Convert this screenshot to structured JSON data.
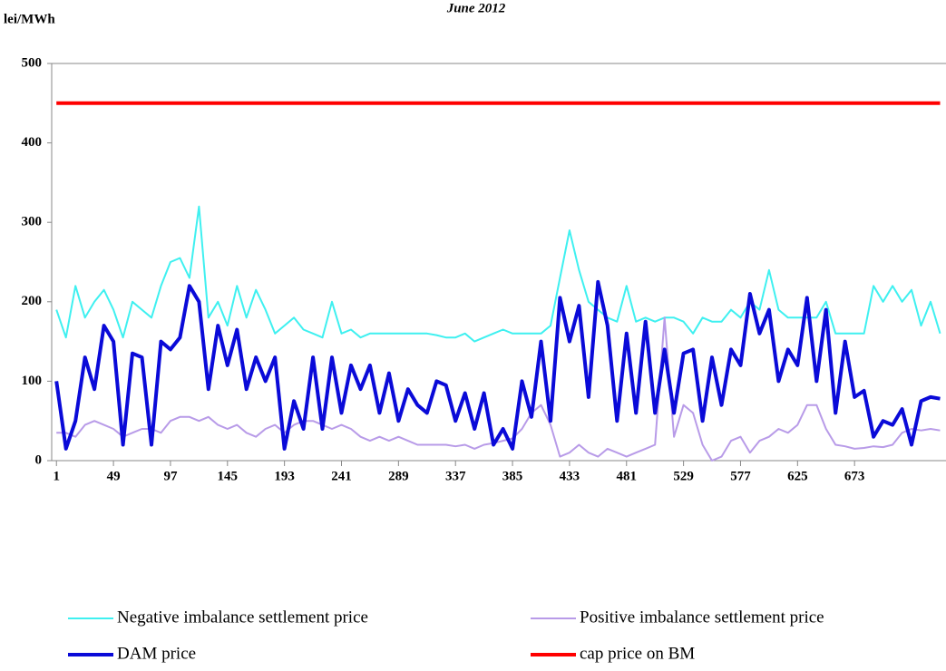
{
  "chart_data": {
    "type": "line",
    "title": "June 2012",
    "y_label": "lei/MWh",
    "xlim": [
      -3,
      750
    ],
    "xticks": [
      1,
      49,
      97,
      145,
      193,
      241,
      289,
      337,
      385,
      433,
      481,
      529,
      577,
      625,
      673
    ],
    "ylim": [
      0,
      500
    ],
    "yticks": [
      0,
      100,
      200,
      300,
      400,
      500
    ],
    "x": [
      1,
      9,
      17,
      25,
      33,
      41,
      49,
      57,
      65,
      73,
      81,
      89,
      97,
      105,
      113,
      121,
      129,
      137,
      145,
      153,
      161,
      169,
      177,
      185,
      193,
      201,
      209,
      217,
      225,
      233,
      241,
      249,
      257,
      265,
      273,
      281,
      289,
      297,
      305,
      313,
      321,
      329,
      337,
      345,
      353,
      361,
      369,
      377,
      385,
      393,
      401,
      409,
      417,
      425,
      433,
      441,
      449,
      457,
      465,
      473,
      481,
      489,
      497,
      505,
      513,
      521,
      529,
      537,
      545,
      553,
      561,
      569,
      577,
      585,
      593,
      601,
      609,
      617,
      625,
      633,
      641,
      649,
      657,
      665,
      673,
      681,
      689,
      697,
      705,
      713,
      721,
      729,
      737,
      745
    ],
    "series": [
      {
        "name": "Negative imbalance settlement price",
        "color": "#3ff0f0",
        "width": 2,
        "values": [
          190,
          155,
          220,
          180,
          200,
          215,
          190,
          155,
          200,
          190,
          180,
          220,
          250,
          255,
          230,
          320,
          180,
          200,
          170,
          220,
          180,
          215,
          190,
          160,
          170,
          180,
          165,
          160,
          155,
          200,
          160,
          165,
          155,
          160,
          160,
          160,
          160,
          160,
          160,
          160,
          158,
          155,
          155,
          160,
          150,
          155,
          160,
          165,
          160,
          160,
          160,
          160,
          170,
          230,
          290,
          240,
          200,
          190,
          180,
          175,
          220,
          175,
          180,
          175,
          180,
          180,
          175,
          160,
          180,
          175,
          175,
          190,
          180,
          200,
          190,
          240,
          190,
          180,
          180,
          180,
          180,
          200,
          160,
          160,
          160,
          160,
          220,
          200,
          220,
          200,
          215,
          170,
          200,
          160
        ]
      },
      {
        "name": "Positive imbalance settlement price",
        "color": "#b89be8",
        "width": 2,
        "values": [
          35,
          35,
          30,
          45,
          50,
          45,
          40,
          30,
          35,
          40,
          40,
          35,
          50,
          55,
          55,
          50,
          55,
          45,
          40,
          45,
          35,
          30,
          40,
          45,
          35,
          45,
          50,
          50,
          45,
          40,
          45,
          40,
          30,
          25,
          30,
          25,
          30,
          25,
          20,
          20,
          20,
          20,
          18,
          20,
          15,
          20,
          22,
          25,
          28,
          40,
          60,
          70,
          45,
          5,
          10,
          20,
          10,
          5,
          15,
          10,
          5,
          10,
          15,
          20,
          180,
          30,
          70,
          60,
          20,
          0,
          5,
          25,
          30,
          10,
          25,
          30,
          40,
          35,
          45,
          70,
          70,
          40,
          20,
          18,
          15,
          16,
          18,
          17,
          20,
          35,
          40,
          38,
          40,
          38
        ]
      },
      {
        "name": "DAM price",
        "color": "#0a0ad8",
        "width": 4,
        "values": [
          100,
          15,
          50,
          130,
          90,
          170,
          150,
          20,
          135,
          130,
          20,
          150,
          140,
          155,
          220,
          200,
          90,
          170,
          120,
          165,
          90,
          130,
          100,
          130,
          15,
          75,
          40,
          130,
          40,
          130,
          60,
          120,
          90,
          120,
          60,
          110,
          50,
          90,
          70,
          60,
          100,
          95,
          50,
          85,
          40,
          85,
          20,
          40,
          15,
          100,
          55,
          150,
          50,
          205,
          150,
          195,
          80,
          225,
          170,
          50,
          160,
          60,
          175,
          60,
          140,
          60,
          135,
          140,
          50,
          130,
          70,
          140,
          120,
          210,
          160,
          190,
          100,
          140,
          120,
          205,
          100,
          190,
          60,
          150,
          80,
          88,
          30,
          50,
          45,
          65,
          20,
          75,
          80,
          78
        ]
      },
      {
        "name": "cap price on BM",
        "color": "#ff0000",
        "width": 4,
        "values": [
          450,
          450,
          450,
          450,
          450,
          450,
          450,
          450,
          450,
          450,
          450,
          450,
          450,
          450,
          450,
          450,
          450,
          450,
          450,
          450,
          450,
          450,
          450,
          450,
          450,
          450,
          450,
          450,
          450,
          450,
          450,
          450,
          450,
          450,
          450,
          450,
          450,
          450,
          450,
          450,
          450,
          450,
          450,
          450,
          450,
          450,
          450,
          450,
          450,
          450,
          450,
          450,
          450,
          450,
          450,
          450,
          450,
          450,
          450,
          450,
          450,
          450,
          450,
          450,
          450,
          450,
          450,
          450,
          450,
          450,
          450,
          450,
          450,
          450,
          450,
          450,
          450,
          450,
          450,
          450,
          450,
          450,
          450,
          450,
          450,
          450,
          450,
          450,
          450,
          450,
          450,
          450,
          450,
          450
        ]
      }
    ]
  }
}
